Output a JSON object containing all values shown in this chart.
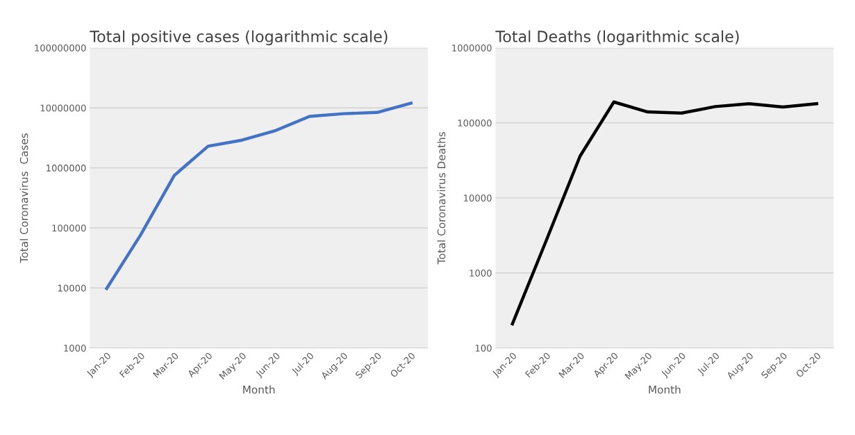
{
  "chart_data": [
    {
      "type": "line",
      "title": "Total positive cases (logarithmic scale)",
      "xlabel": "Month",
      "ylabel": "Total Coronavirus  Cases",
      "log": "y",
      "grid": "y",
      "legend": false,
      "marker": "none",
      "line_style": "solid",
      "categories": [
        "Jan-20",
        "Feb-20",
        "Mar-20",
        "Apr-20",
        "May-20",
        "Jun-20",
        "Jul-20",
        "Aug-20",
        "Sep-20",
        "Oct-20"
      ],
      "ylim": [
        1000,
        100000000
      ],
      "yticks": [
        1000,
        10000,
        100000,
        1000000,
        10000000,
        100000000
      ],
      "series": [
        {
          "color": "#4472c4",
          "values": [
            9800,
            76000,
            750000,
            2300000,
            2900000,
            4200000,
            7200000,
            8000000,
            8400000,
            12000000
          ]
        }
      ]
    },
    {
      "type": "line",
      "title": "Total Deaths (logarithmic scale)",
      "xlabel": "Month",
      "ylabel": "Total Coronavirus Deaths",
      "log": "y",
      "grid": "y",
      "legend": false,
      "marker": "none",
      "line_style": "solid",
      "categories": [
        "Jan-20",
        "Feb-20",
        "Mar-20",
        "Apr-20",
        "May-20",
        "Jun-20",
        "Jul-20",
        "Aug-20",
        "Sep-20",
        "Oct-20"
      ],
      "ylim": [
        100,
        1000000
      ],
      "yticks": [
        100,
        1000,
        10000,
        100000,
        1000000
      ],
      "series": [
        {
          "color": "#000000",
          "values": [
            210,
            2700,
            36000,
            190000,
            140000,
            135000,
            165000,
            180000,
            163000,
            180000
          ]
        }
      ]
    }
  ]
}
